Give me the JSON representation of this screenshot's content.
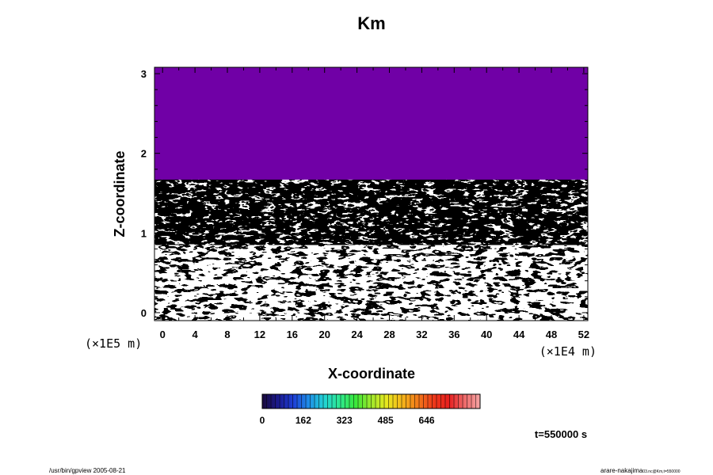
{
  "chart_data": {
    "type": "heatmap",
    "title": "Km",
    "xlabel": "X-coordinate",
    "ylabel": "Z-coordinate",
    "x_scale_label": "(×1E4 m)",
    "y_scale_label": "(×1E5 m)",
    "xlim": [
      -1,
      52.5
    ],
    "ylim": [
      -0.1,
      3.08
    ],
    "x_ticks": [
      0,
      4,
      8,
      12,
      16,
      20,
      24,
      28,
      32,
      36,
      40,
      44,
      48,
      52
    ],
    "y_ticks": [
      0,
      1,
      2,
      3
    ],
    "colorbar": {
      "ticks": [
        "0",
        "162",
        "323",
        "485",
        "646"
      ],
      "palette": [
        "#1a0a3c",
        "#1b1a8c",
        "#1e3fd6",
        "#1f8fe8",
        "#22d3d3",
        "#2ee88f",
        "#39e83a",
        "#9ee82c",
        "#e8e81f",
        "#f5b51a",
        "#f27a1a",
        "#ee3a1a",
        "#e81f1f",
        "#ee6a6a",
        "#f5a5a5"
      ]
    },
    "regions": [
      {
        "name": "upper-layer",
        "z_range": [
          1.67,
          3.08
        ],
        "level": "0"
      }
    ],
    "grid": false,
    "legend": "none"
  },
  "time_label": "t=550000 s",
  "footer": {
    "left": "/usr/bin/gpview 2005-08-21",
    "right": "arare-nakajima",
    "right_small": "03.nc@Km,t=550000"
  },
  "colors": {
    "upper_layer": "#7000a6"
  }
}
